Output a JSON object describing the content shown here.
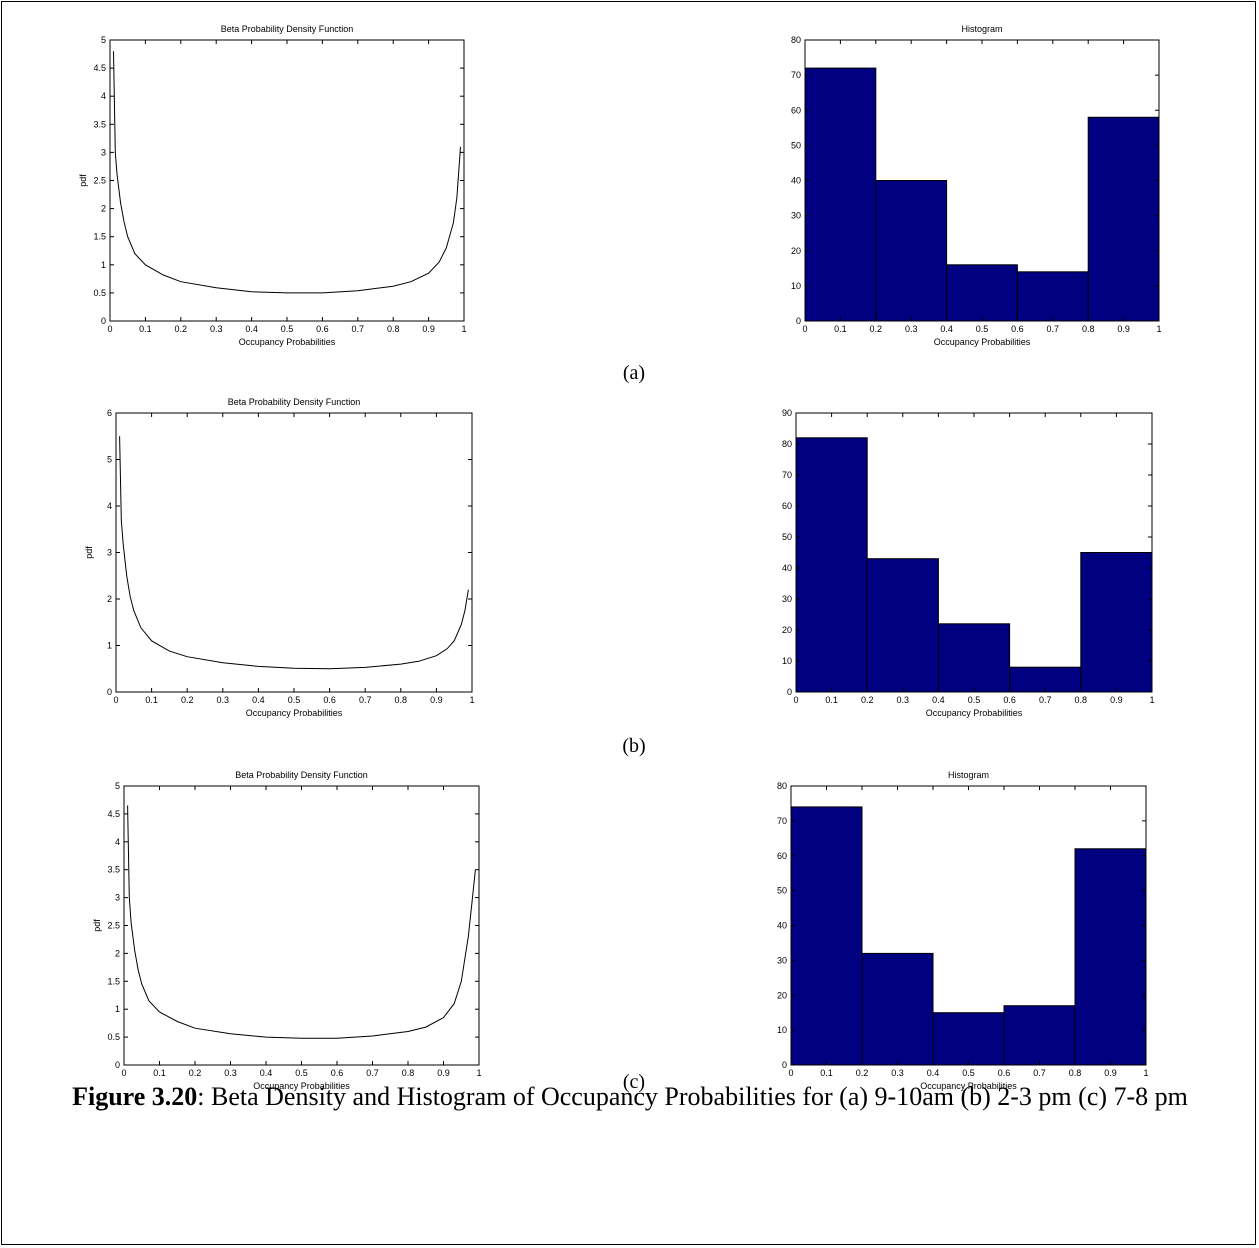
{
  "caption": {
    "label": "Figure 3.20",
    "text": ": Beta Density and Histogram of Occupancy Probabilities for (a) 9-10am (b) 2-3 pm (c) 7-8 pm"
  },
  "sublabels": [
    "(a)",
    "(b)",
    "(c)"
  ],
  "colors": {
    "bar_fill": "#000080",
    "line": "#000000",
    "axes": "#000000"
  },
  "chart_data": [
    {
      "id": "a-pdf",
      "type": "line",
      "title": "Beta Probability Density Function",
      "xlabel": "Occupancy Probabilities",
      "ylabel": "pdf",
      "xlim": [
        0,
        1
      ],
      "ylim": [
        0,
        5
      ],
      "xticks": [
        "0",
        "0.1",
        "0.2",
        "0.3",
        "0.4",
        "0.5",
        "0.6",
        "0.7",
        "0.8",
        "0.9",
        "1"
      ],
      "yticks": [
        "0",
        "0.5",
        "1",
        "1.5",
        "2",
        "2.5",
        "3",
        "3.5",
        "4",
        "4.5",
        "5"
      ],
      "series": [
        {
          "x": [
            0.01,
            0.015,
            0.02,
            0.03,
            0.04,
            0.05,
            0.07,
            0.1,
            0.15,
            0.2,
            0.3,
            0.4,
            0.5,
            0.6,
            0.7,
            0.8,
            0.85,
            0.9,
            0.93,
            0.95,
            0.97,
            0.98,
            0.99
          ],
          "y": [
            4.8,
            3.0,
            2.6,
            2.1,
            1.75,
            1.5,
            1.2,
            1.0,
            0.82,
            0.7,
            0.59,
            0.52,
            0.5,
            0.5,
            0.54,
            0.62,
            0.7,
            0.85,
            1.05,
            1.3,
            1.75,
            2.2,
            3.1
          ]
        }
      ]
    },
    {
      "id": "a-hist",
      "type": "bar",
      "title": "Histogram",
      "xlabel": "Occupancy Probabilities",
      "ylabel": "",
      "xlim": [
        0,
        1
      ],
      "ylim": [
        0,
        80
      ],
      "xticks": [
        "0",
        "0.1",
        "0.2",
        "0.3",
        "0.4",
        "0.5",
        "0.6",
        "0.7",
        "0.8",
        "0.9",
        "1"
      ],
      "yticks": [
        "0",
        "10",
        "20",
        "30",
        "40",
        "50",
        "60",
        "70",
        "80"
      ],
      "bins": [
        [
          0,
          0.2
        ],
        [
          0.2,
          0.4
        ],
        [
          0.4,
          0.6
        ],
        [
          0.6,
          0.8
        ],
        [
          0.8,
          1
        ]
      ],
      "values": [
        72,
        40,
        16,
        14,
        58
      ]
    },
    {
      "id": "b-pdf",
      "type": "line",
      "title": "Beta Probability Density Function",
      "xlabel": "Occupancy Probabilities",
      "ylabel": "pdf",
      "xlim": [
        0,
        1
      ],
      "ylim": [
        0,
        6
      ],
      "xticks": [
        "0",
        "0.1",
        "0.2",
        "0.3",
        "0.4",
        "0.5",
        "0.6",
        "0.7",
        "0.8",
        "0.9",
        "1"
      ],
      "yticks": [
        "0",
        "1",
        "2",
        "3",
        "4",
        "5",
        "6"
      ],
      "series": [
        {
          "x": [
            0.01,
            0.015,
            0.02,
            0.03,
            0.04,
            0.05,
            0.07,
            0.1,
            0.15,
            0.2,
            0.3,
            0.4,
            0.5,
            0.6,
            0.7,
            0.8,
            0.85,
            0.9,
            0.93,
            0.95,
            0.97,
            0.98,
            0.99
          ],
          "y": [
            5.5,
            3.7,
            3.2,
            2.5,
            2.05,
            1.75,
            1.38,
            1.1,
            0.88,
            0.76,
            0.63,
            0.55,
            0.51,
            0.5,
            0.53,
            0.6,
            0.66,
            0.78,
            0.93,
            1.1,
            1.45,
            1.75,
            2.2
          ]
        }
      ]
    },
    {
      "id": "b-hist",
      "type": "bar",
      "title": "",
      "xlabel": "Occupancy Probabilities",
      "ylabel": "",
      "xlim": [
        0,
        1
      ],
      "ylim": [
        0,
        90
      ],
      "xticks": [
        "0",
        "0.1",
        "0.2",
        "0.3",
        "0.4",
        "0.5",
        "0.6",
        "0.7",
        "0.8",
        "0.9",
        "1"
      ],
      "yticks": [
        "0",
        "10",
        "20",
        "30",
        "40",
        "50",
        "60",
        "70",
        "80",
        "90"
      ],
      "bins": [
        [
          0,
          0.2
        ],
        [
          0.2,
          0.4
        ],
        [
          0.4,
          0.6
        ],
        [
          0.6,
          0.8
        ],
        [
          0.8,
          1
        ]
      ],
      "values": [
        82,
        43,
        22,
        8,
        45
      ]
    },
    {
      "id": "c-pdf",
      "type": "line",
      "title": "Beta Probability Density Function",
      "xlabel": "Occupancy Probabilities",
      "ylabel": "pdf",
      "xlim": [
        0,
        1
      ],
      "ylim": [
        0,
        5
      ],
      "xticks": [
        "0",
        "0.1",
        "0.2",
        "0.3",
        "0.4",
        "0.5",
        "0.6",
        "0.7",
        "0.8",
        "0.9",
        "1"
      ],
      "yticks": [
        "0",
        "0.5",
        "1",
        "1.5",
        "2",
        "2.5",
        "3",
        "3.5",
        "4",
        "4.5",
        "5"
      ],
      "series": [
        {
          "x": [
            0.01,
            0.015,
            0.02,
            0.03,
            0.04,
            0.05,
            0.07,
            0.1,
            0.15,
            0.2,
            0.3,
            0.4,
            0.5,
            0.6,
            0.7,
            0.8,
            0.85,
            0.9,
            0.93,
            0.95,
            0.97,
            0.98,
            0.99
          ],
          "y": [
            4.65,
            3.0,
            2.55,
            2.05,
            1.7,
            1.45,
            1.15,
            0.95,
            0.78,
            0.66,
            0.56,
            0.5,
            0.48,
            0.48,
            0.52,
            0.6,
            0.68,
            0.85,
            1.1,
            1.5,
            2.3,
            2.9,
            3.5
          ]
        }
      ]
    },
    {
      "id": "c-hist",
      "type": "bar",
      "title": "Histogram",
      "xlabel": "Occupancy Probabilities",
      "ylabel": "",
      "xlim": [
        0,
        1
      ],
      "ylim": [
        0,
        80
      ],
      "xticks": [
        "0",
        "0.1",
        "0.2",
        "0.3",
        "0.4",
        "0.5",
        "0.6",
        "0.7",
        "0.8",
        "0.9",
        "1"
      ],
      "yticks": [
        "0",
        "10",
        "20",
        "30",
        "40",
        "50",
        "60",
        "70",
        "80"
      ],
      "bins": [
        [
          0,
          0.2
        ],
        [
          0.2,
          0.4
        ],
        [
          0.4,
          0.6
        ],
        [
          0.6,
          0.8
        ],
        [
          0.8,
          1
        ]
      ],
      "values": [
        74,
        32,
        15,
        17,
        62
      ]
    }
  ]
}
